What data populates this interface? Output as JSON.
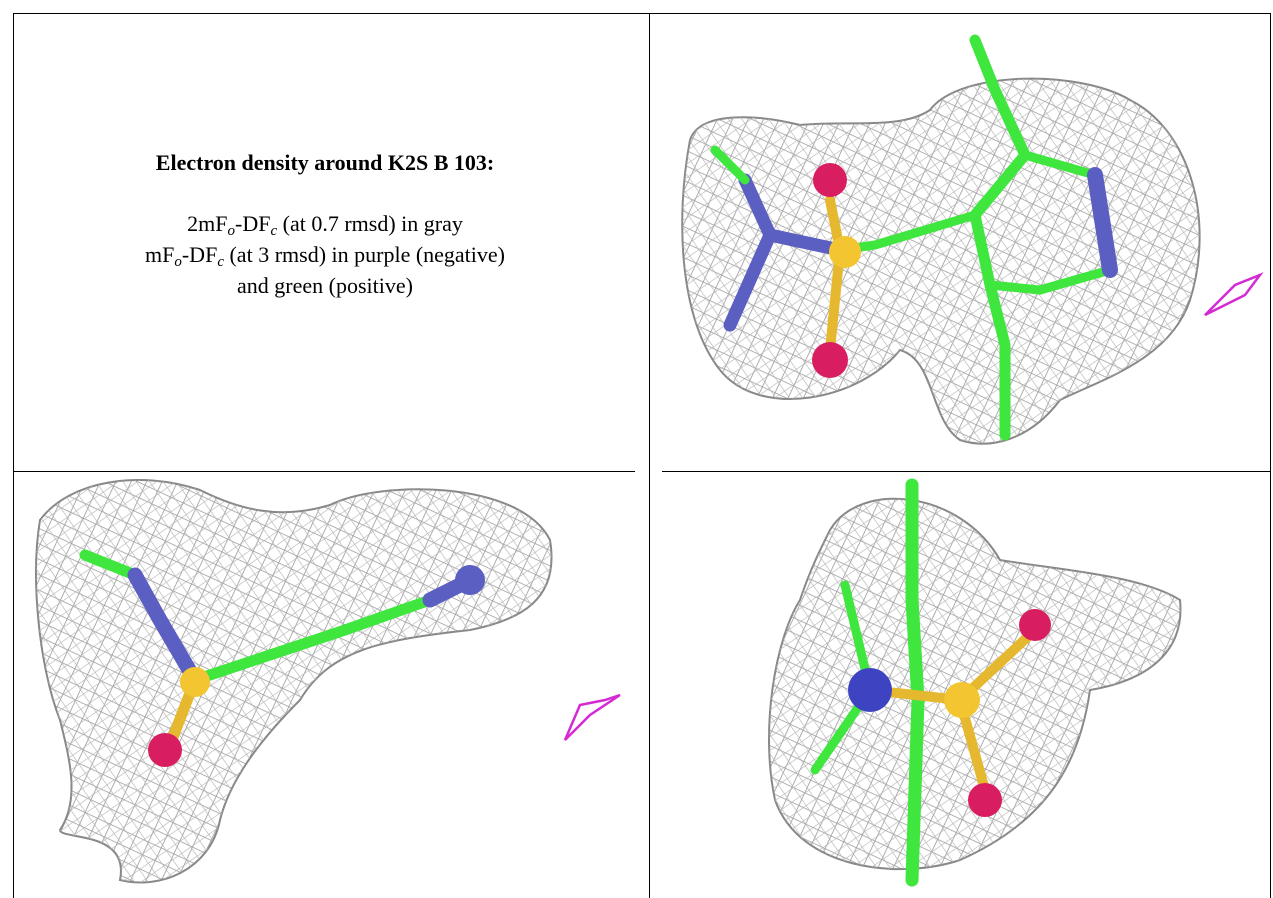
{
  "header": {
    "title": "Electron density around K2S B 103:"
  },
  "legend": {
    "lines": [
      {
        "lead": "2mF",
        "sub1": "o",
        "mid": "-DF",
        "sub2": "c",
        "rest": " (at 0.7 rmsd) in gray"
      },
      {
        "lead": "mF",
        "sub1": "o",
        "mid": "-DF",
        "sub2": "c",
        "rest": " (at 3 rmsd) in purple (negative)"
      },
      {
        "text": "and green (positive)"
      }
    ]
  }
}
